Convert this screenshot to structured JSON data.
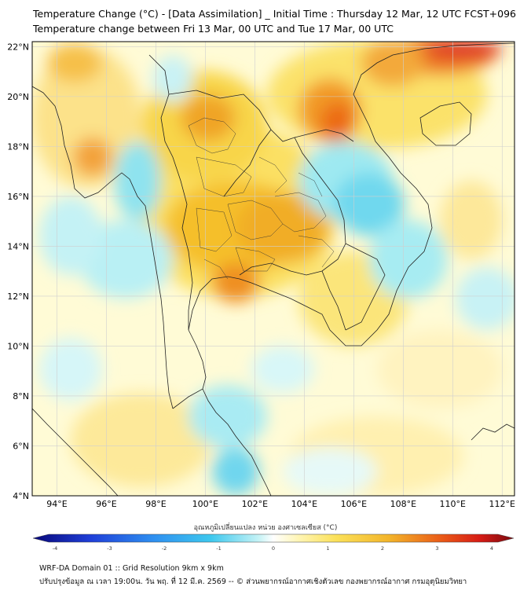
{
  "header": {
    "title_line1": "Temperature Change (°C) - [Data Assimilation] _ Initial Time : Thursday 12 Mar, 12 UTC FCST+096",
    "title_line2": "Temperature change between Fri 13 Mar, 00 UTC and Tue 17 Mar, 00 UTC"
  },
  "map": {
    "lat_labels": [
      "22°N",
      "20°N",
      "18°N",
      "16°N",
      "14°N",
      "12°N",
      "10°N",
      "8°N",
      "6°N",
      "4°N"
    ],
    "lon_labels": [
      "94°E",
      "96°E",
      "98°E",
      "100°E",
      "102°E",
      "104°E",
      "106°E",
      "108°E",
      "110°E",
      "112°E"
    ],
    "lat_values": [
      22,
      20,
      18,
      16,
      14,
      12,
      10,
      8,
      6,
      4
    ],
    "lon_values": [
      94,
      96,
      98,
      100,
      102,
      104,
      106,
      108,
      110,
      112
    ],
    "colors": {
      "ocean_base": "#fffcd8",
      "warm": "#f5c32a",
      "hot": "#ef6a18",
      "cool": "#8fe6ee",
      "cold": "#3ec2e4",
      "border": "#222222"
    }
  },
  "colorbar": {
    "title": "อุณหภูมิเปลี่ยนแปลง หน่วย องศาเซลเซียส (°C)",
    "ticks": [
      "-4",
      "-3",
      "-2",
      "-1",
      "0",
      "1",
      "2",
      "3",
      "4"
    ],
    "range": [
      -4,
      4
    ]
  },
  "footer": {
    "line1": "WRF-DA Domain 01 :: Grid Resolution 9km x 9km",
    "line2": "ปรับปรุงข้อมูล ณ เวลา 19:00น. วัน พฤ. ที่ 12 มี.ค. 2569 -- © ส่วนพยากรณ์อากาศเชิงตัวเลข กองพยากรณ์อากาศ กรมอุตุนิยมวิทยา"
  }
}
